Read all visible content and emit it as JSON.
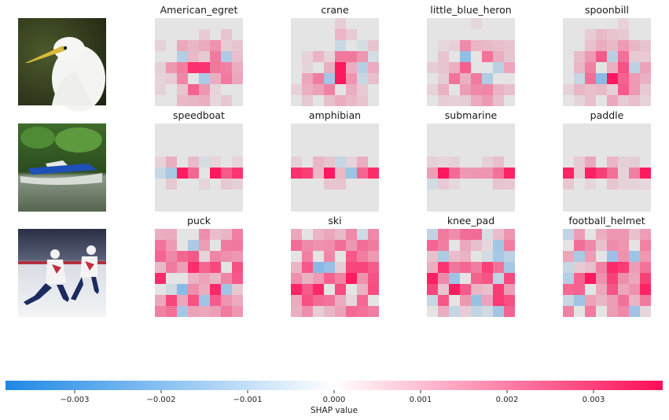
{
  "chart_data": {
    "type": "heatmap",
    "title": "",
    "xlabel": "SHAP value",
    "rows": [
      {
        "image": "great egret head with yellow beak on dark green background",
        "classes": [
          "American_egret",
          "crane",
          "little_blue_heron",
          "spoonbill"
        ]
      },
      {
        "image": "blue speedboat on water in front of green trees",
        "classes": [
          "speedboat",
          "amphibian",
          "submarine",
          "paddle"
        ]
      },
      {
        "image": "ice hockey players in white and red jerseys",
        "classes": [
          "puck",
          "ski",
          "knee_pad",
          "football_helmet"
        ]
      }
    ],
    "colorbar": {
      "label": "SHAP value",
      "range": [
        -0.0038,
        0.0038
      ],
      "ticks": [
        -0.003,
        -0.002,
        -0.001,
        0.0,
        0.001,
        0.002,
        0.003
      ],
      "tick_labels": [
        "−0.003",
        "−0.002",
        "−0.001",
        "0.000",
        "0.001",
        "0.002",
        "0.003"
      ],
      "negative_color": "#1e88e5",
      "positive_color": "#ff0d57"
    }
  }
}
